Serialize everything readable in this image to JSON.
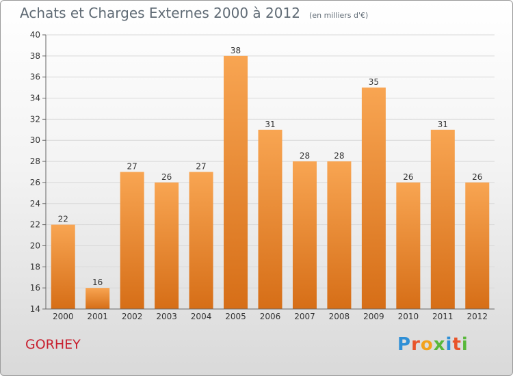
{
  "title": "Achats et Charges Externes 2000 à 2012",
  "unit": "(en milliers d'€)",
  "footer": {
    "city": "GORHEY",
    "logo_text": "Proxiti"
  },
  "colors": {
    "bar_top": "#f8a552",
    "bar_bottom": "#d66e17",
    "axis_text": "#333333",
    "grid": "#d8d8d8",
    "city": "#c8202f"
  },
  "chart_data": {
    "type": "bar",
    "categories": [
      "2000",
      "2001",
      "2002",
      "2003",
      "2004",
      "2005",
      "2006",
      "2007",
      "2008",
      "2009",
      "2010",
      "2011",
      "2012"
    ],
    "values": [
      22,
      16,
      27,
      26,
      27,
      38,
      31,
      28,
      28,
      35,
      26,
      31,
      26
    ],
    "yticks": [
      14,
      16,
      18,
      20,
      22,
      24,
      26,
      28,
      30,
      32,
      34,
      36,
      38,
      40
    ],
    "ylim": [
      14,
      40
    ],
    "grid": true
  }
}
